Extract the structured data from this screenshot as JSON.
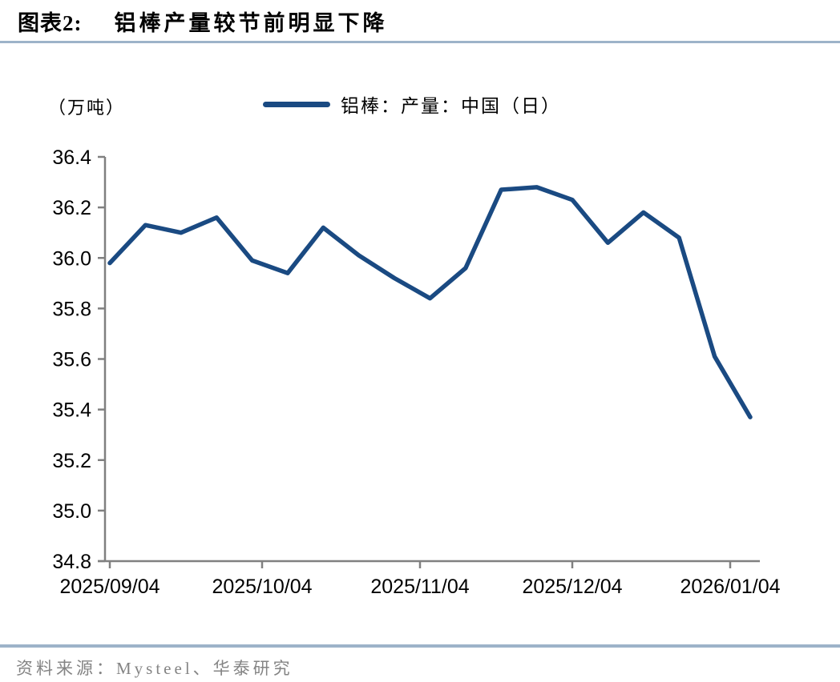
{
  "page": {
    "title_prefix": "图表2:",
    "title": "铝棒产量较节前明显下降",
    "source": "资料来源：Mysteel、华泰研究"
  },
  "chart_data": {
    "type": "line",
    "title": "铝棒产量较节前明显下降",
    "unit_label": "（万吨）",
    "xlabel": "",
    "ylabel": "万吨",
    "ylim": [
      34.8,
      36.4
    ],
    "y_ticks": [
      36.4,
      36.2,
      36.0,
      35.8,
      35.6,
      35.4,
      35.2,
      35.0,
      34.8
    ],
    "x_tick_labels": [
      "2025/09/04",
      "2025/10/04",
      "2025/11/04",
      "2025/12/04",
      "2026/01/04"
    ],
    "grid": false,
    "legend_position": "top",
    "series": [
      {
        "name": "铝棒：产量：中国（日）",
        "color": "#1a4a82",
        "values": [
          35.98,
          36.13,
          36.1,
          36.16,
          35.99,
          35.94,
          36.12,
          36.01,
          35.92,
          35.84,
          35.96,
          36.27,
          36.28,
          36.23,
          36.06,
          36.18,
          36.08,
          35.61,
          35.37
        ]
      }
    ],
    "colors": {
      "line": "#1a4a82",
      "axis": "#808080",
      "rule": "#9db3c9",
      "source_text": "#848484"
    }
  }
}
